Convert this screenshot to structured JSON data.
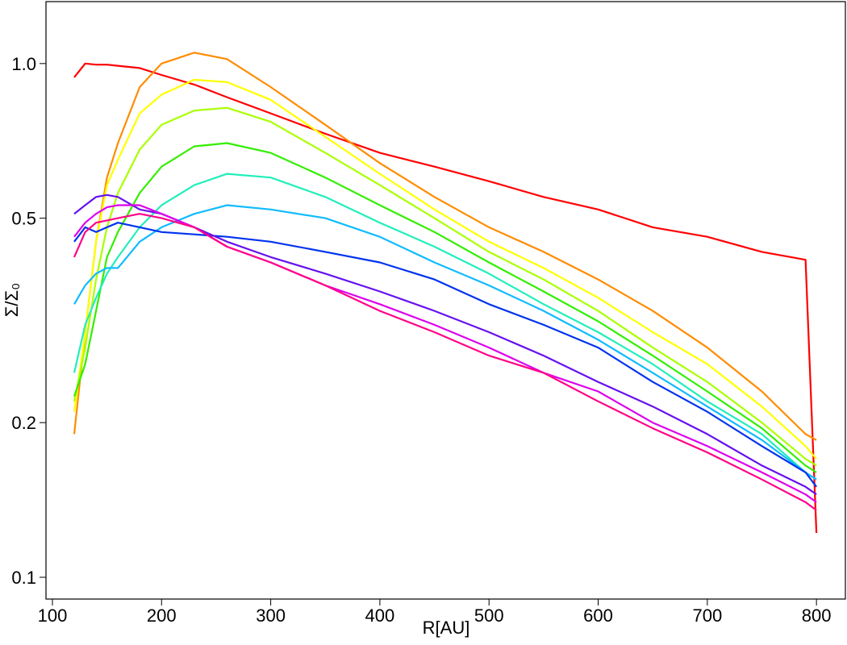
{
  "chart_data": {
    "type": "line",
    "xlabel": "R[AU]",
    "ylabel": "Σ/Σ₀",
    "ylog": true,
    "x": [
      120,
      130,
      140,
      150,
      160,
      180,
      200,
      230,
      260,
      300,
      350,
      400,
      450,
      500,
      550,
      600,
      650,
      700,
      750,
      790,
      800
    ],
    "xlim": [
      94.1,
      826.5
    ],
    "xticks": [
      100,
      200,
      300,
      400,
      500,
      600,
      700,
      800
    ],
    "ylim": [
      0.0907,
      1.32
    ],
    "yticks": [
      0.1,
      0.2,
      0.5,
      {
        "value": 1,
        "label": "1.0"
      }
    ],
    "series": [
      {
        "color": "#ff0000",
        "values": [
          0.94,
          1.0,
          0.995,
          0.995,
          0.99,
          0.98,
          0.95,
          0.91,
          0.86,
          0.8,
          0.73,
          0.67,
          0.63,
          0.59,
          0.55,
          0.52,
          0.48,
          0.46,
          0.43,
          0.415,
          0.122
        ]
      },
      {
        "color": "#ff8c00",
        "values": [
          0.19,
          0.3,
          0.45,
          0.6,
          0.7,
          0.9,
          1.0,
          1.05,
          1.02,
          0.9,
          0.76,
          0.64,
          0.55,
          0.48,
          0.43,
          0.38,
          0.33,
          0.28,
          0.23,
          0.19,
          0.185
        ]
      },
      {
        "color": "#ffff00",
        "values": [
          0.21,
          0.3,
          0.45,
          0.58,
          0.65,
          0.8,
          0.87,
          0.93,
          0.92,
          0.85,
          0.72,
          0.61,
          0.52,
          0.45,
          0.4,
          0.35,
          0.3,
          0.26,
          0.215,
          0.18,
          0.17
        ]
      },
      {
        "color": "#aaff00",
        "values": [
          0.22,
          0.28,
          0.38,
          0.48,
          0.56,
          0.68,
          0.76,
          0.81,
          0.82,
          0.77,
          0.67,
          0.58,
          0.5,
          0.43,
          0.38,
          0.33,
          0.28,
          0.24,
          0.2,
          0.17,
          0.165
        ]
      },
      {
        "color": "#33ee00",
        "values": [
          0.225,
          0.26,
          0.33,
          0.42,
          0.47,
          0.56,
          0.63,
          0.69,
          0.7,
          0.67,
          0.6,
          0.53,
          0.47,
          0.41,
          0.36,
          0.315,
          0.27,
          0.23,
          0.195,
          0.165,
          0.16
        ]
      },
      {
        "color": "#22eebb",
        "values": [
          0.25,
          0.31,
          0.35,
          0.39,
          0.42,
          0.48,
          0.53,
          0.58,
          0.61,
          0.6,
          0.55,
          0.49,
          0.44,
          0.39,
          0.34,
          0.3,
          0.26,
          0.22,
          0.19,
          0.16,
          0.155
        ]
      },
      {
        "color": "#11bbff",
        "values": [
          0.34,
          0.37,
          0.39,
          0.4,
          0.4,
          0.45,
          0.48,
          0.51,
          0.53,
          0.52,
          0.5,
          0.46,
          0.41,
          0.37,
          0.33,
          0.29,
          0.25,
          0.215,
          0.185,
          0.16,
          0.155
        ]
      },
      {
        "color": "#0033ee",
        "values": [
          0.45,
          0.48,
          0.47,
          0.48,
          0.49,
          0.48,
          0.47,
          0.465,
          0.46,
          0.45,
          0.43,
          0.41,
          0.38,
          0.34,
          0.31,
          0.28,
          0.24,
          0.21,
          0.18,
          0.16,
          0.15
        ]
      },
      {
        "color": "#6611ee",
        "values": [
          0.51,
          0.53,
          0.55,
          0.555,
          0.55,
          0.52,
          0.51,
          0.48,
          0.45,
          0.42,
          0.39,
          0.36,
          0.33,
          0.3,
          0.27,
          0.24,
          0.215,
          0.19,
          0.165,
          0.15,
          0.145
        ]
      },
      {
        "color": "#dd00ee",
        "values": [
          0.46,
          0.49,
          0.51,
          0.525,
          0.53,
          0.53,
          0.51,
          0.48,
          0.44,
          0.41,
          0.37,
          0.34,
          0.31,
          0.28,
          0.25,
          0.23,
          0.2,
          0.18,
          0.16,
          0.145,
          0.14
        ]
      },
      {
        "color": "#ff0088",
        "values": [
          0.42,
          0.47,
          0.49,
          0.495,
          0.5,
          0.51,
          0.5,
          0.48,
          0.44,
          0.41,
          0.37,
          0.33,
          0.3,
          0.27,
          0.25,
          0.22,
          0.195,
          0.175,
          0.155,
          0.14,
          0.135
        ]
      }
    ]
  }
}
